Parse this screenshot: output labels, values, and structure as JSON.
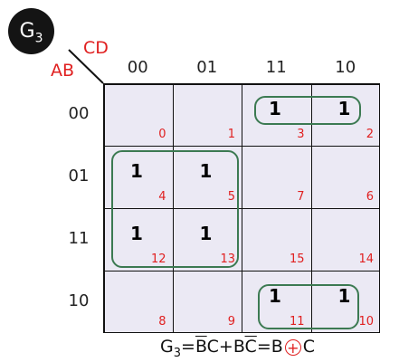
{
  "badge": {
    "letter": "G",
    "sub": "3"
  },
  "var_col": "CD",
  "var_row": "AB",
  "col_headers": [
    "00",
    "01",
    "11",
    "10"
  ],
  "row_headers": [
    "00",
    "01",
    "11",
    "10"
  ],
  "cells": [
    [
      {
        "v": "",
        "i": "0"
      },
      {
        "v": "",
        "i": "1"
      },
      {
        "v": "1",
        "i": "3"
      },
      {
        "v": "1",
        "i": "2"
      }
    ],
    [
      {
        "v": "1",
        "i": "4"
      },
      {
        "v": "1",
        "i": "5"
      },
      {
        "v": "",
        "i": "7"
      },
      {
        "v": "",
        "i": "6"
      }
    ],
    [
      {
        "v": "1",
        "i": "12"
      },
      {
        "v": "1",
        "i": "13"
      },
      {
        "v": "",
        "i": "15"
      },
      {
        "v": "",
        "i": "14"
      }
    ],
    [
      {
        "v": "",
        "i": "8"
      },
      {
        "v": "",
        "i": "9"
      },
      {
        "v": "1",
        "i": "11"
      },
      {
        "v": "1",
        "i": "10"
      }
    ]
  ],
  "formula": {
    "lhs": "G",
    "lhs_sub": "3",
    "eq1": "=",
    "t1a": "B",
    "t1b": "C+B",
    "t2": "C",
    "eq2": "=B",
    "op": "+",
    "tail": "C"
  },
  "colors": {
    "accent": "#e02020",
    "group": "#3c7a52",
    "grid_bg": "#ebe9f4"
  }
}
